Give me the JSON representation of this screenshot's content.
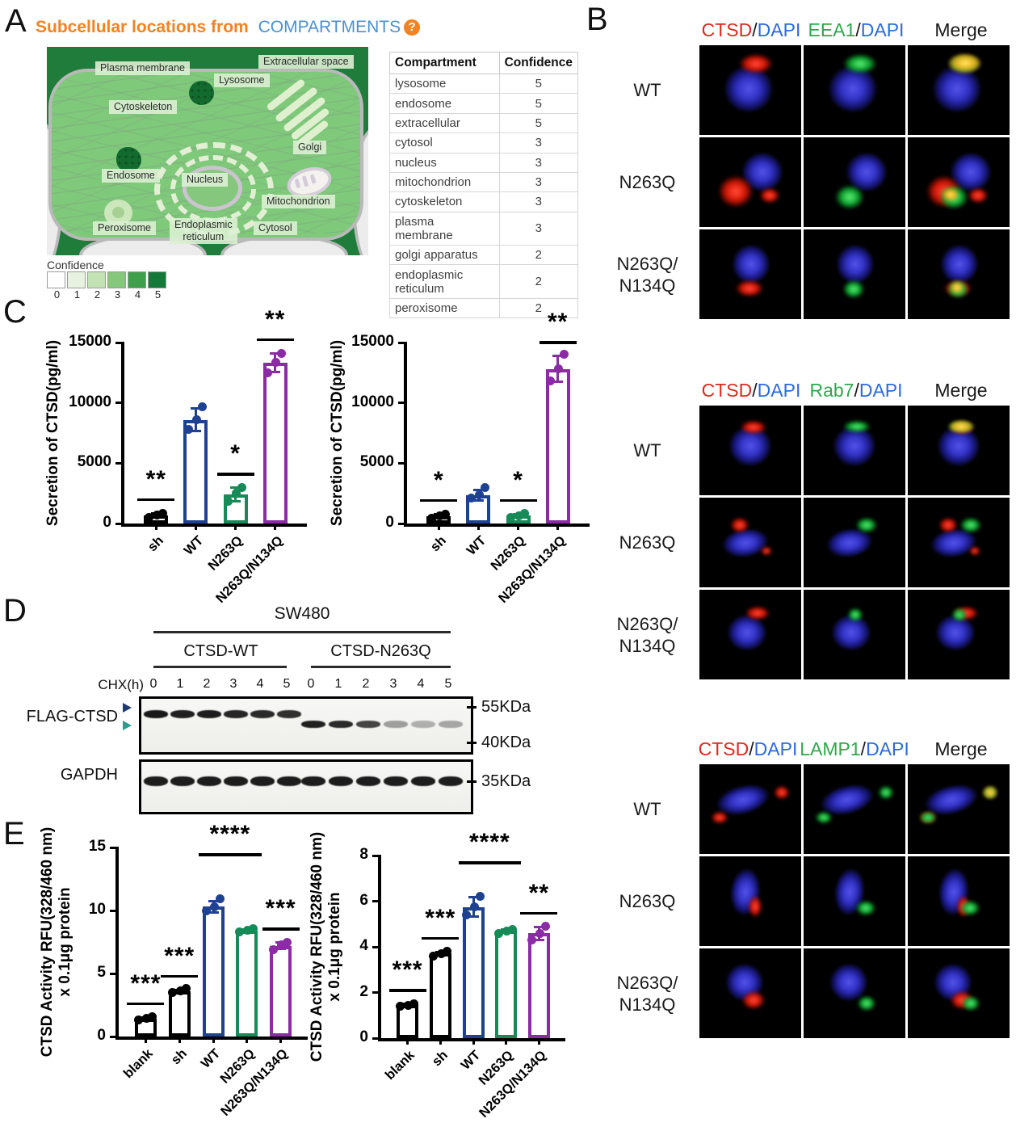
{
  "panel_letters": {
    "a": "A",
    "b": "B",
    "c": "C",
    "d": "D",
    "e": "E"
  },
  "panel_a": {
    "title_orange": "Subcellular locations from",
    "title_blue": "COMPARTMENTS",
    "help_icon": "?",
    "diagram_labels": {
      "plasma_membrane": "Plasma membrane",
      "extracellular": "Extracellular space",
      "lysosome": "Lysosome",
      "cytoskeleton": "Cytoskeleton",
      "golgi": "Golgi",
      "endosome": "Endosome",
      "nucleus": "Nucleus",
      "mitochondrion": "Mitochondrion",
      "peroxisome": "Peroxisome",
      "endoplasmic_reticulum": "Endoplasmic\nreticulum",
      "cytosol": "Cytosol"
    },
    "legend": {
      "label": "Confidence",
      "values": [
        "0",
        "1",
        "2",
        "3",
        "4",
        "5"
      ],
      "colors": [
        "#ffffff",
        "#e7f2e0",
        "#c3e2b4",
        "#85c87d",
        "#3fa04c",
        "#15793a"
      ]
    },
    "table": {
      "headers": [
        "Compartment",
        "Confidence"
      ],
      "rows": [
        [
          "lysosome",
          "5"
        ],
        [
          "endosome",
          "5"
        ],
        [
          "extracellular",
          "5"
        ],
        [
          "cytosol",
          "3"
        ],
        [
          "nucleus",
          "3"
        ],
        [
          "mitochondrion",
          "3"
        ],
        [
          "cytoskeleton",
          "3"
        ],
        [
          "plasma membrane",
          "3"
        ],
        [
          "golgi apparatus",
          "2"
        ],
        [
          "endoplasmic reticulum",
          "2"
        ],
        [
          "peroxisome",
          "2"
        ]
      ]
    }
  },
  "panel_b": {
    "blocks": [
      {
        "h1_red": "CTSD",
        "h1_slash": "/",
        "h1_blue": "DAPI",
        "h2_green": "EEA1",
        "h2_slash": "/",
        "h2_blue": "DAPI",
        "h3": "Merge",
        "rows": [
          "WT",
          "N263Q",
          "N263Q/\nN134Q"
        ]
      },
      {
        "h1_red": "CTSD",
        "h1_slash": "/",
        "h1_blue": "DAPI",
        "h2_green": "Rab7",
        "h2_slash": "/",
        "h2_blue": "DAPI",
        "h3": "Merge",
        "rows": [
          "WT",
          "N263Q",
          "N263Q/\nN134Q"
        ]
      },
      {
        "h1_red": "CTSD",
        "h1_slash": "/",
        "h1_blue": "DAPI",
        "h2_green": "LAMP1",
        "h2_slash": "/",
        "h2_blue": "DAPI",
        "h3": "Merge",
        "rows": [
          "WT",
          "N263Q",
          "N263Q/\nN134Q"
        ]
      }
    ]
  },
  "panel_d": {
    "cell_line": "SW480",
    "groups": [
      "CTSD-WT",
      "CTSD-N263Q"
    ],
    "chx_label": "CHX(h)",
    "lanes": [
      "0",
      "1",
      "2",
      "3",
      "4",
      "5"
    ],
    "blot_labels": [
      "FLAG-CTSD",
      "GAPDH"
    ],
    "markers": [
      "55KDa",
      "40KDa",
      "35KDa"
    ]
  },
  "chart_data": [
    {
      "id": "c1",
      "panel": "C",
      "type": "bar",
      "title": "",
      "xlabel": "",
      "ylabel": "Secretion of CTSD(pg/ml)",
      "yticks": [
        0,
        5000,
        10000,
        15000
      ],
      "ylim": [
        0,
        15000
      ],
      "grid": false,
      "legend": "none",
      "categories": [
        "sh",
        "WT",
        "N263Q",
        "N263Q/N134Q"
      ],
      "values": [
        700,
        8600,
        2400,
        13350
      ],
      "errors": [
        200,
        950,
        600,
        800
      ],
      "points": [
        [
          500,
          680,
          820
        ],
        [
          7800,
          8600,
          9700
        ],
        [
          1850,
          2500,
          2950
        ],
        [
          12500,
          13350,
          14100
        ]
      ],
      "colors": [
        "#000000",
        "#1E4191",
        "#168A57",
        "#8C2BA6"
      ],
      "sig": [
        "**",
        "",
        "*",
        "**"
      ]
    },
    {
      "id": "c2",
      "panel": "C",
      "type": "bar",
      "title": "",
      "xlabel": "",
      "ylabel": "Secretion of CTSD(pg/ml)",
      "yticks": [
        0,
        5000,
        10000,
        15000
      ],
      "ylim": [
        0,
        15000
      ],
      "grid": false,
      "legend": "none",
      "categories": [
        "sh",
        "WT",
        "N263Q",
        "N263Q/N134Q"
      ],
      "values": [
        620,
        2350,
        650,
        12800
      ],
      "errors": [
        200,
        450,
        180,
        1100
      ],
      "points": [
        [
          420,
          620,
          800
        ],
        [
          2100,
          2350,
          3000
        ],
        [
          480,
          650,
          820
        ],
        [
          11800,
          12800,
          14050
        ]
      ],
      "colors": [
        "#000000",
        "#1E4191",
        "#168A57",
        "#8C2BA6"
      ],
      "sig": [
        "*",
        "",
        "*",
        "**"
      ]
    },
    {
      "id": "e1",
      "panel": "E",
      "type": "bar",
      "title": "",
      "xlabel": "",
      "ylabel": "CTSD Activity RFU(328/460 nm)\nx 0.1μg protein",
      "yticks": [
        0,
        5,
        10,
        15
      ],
      "ylim": [
        0,
        15
      ],
      "grid": false,
      "legend": "none",
      "categories": [
        "blank",
        "sh",
        "WT",
        "N263Q",
        "N263Q/N134Q"
      ],
      "values": [
        1.4,
        3.6,
        10.3,
        8.4,
        7.2
      ],
      "errors": [
        0.15,
        0.15,
        0.5,
        0.1,
        0.3
      ],
      "points": [
        [
          1.3,
          1.45,
          1.55
        ],
        [
          3.5,
          3.65,
          3.8
        ],
        [
          10.0,
          10.3,
          10.9
        ],
        [
          8.3,
          8.45,
          8.55
        ],
        [
          6.9,
          7.25,
          7.5
        ]
      ],
      "colors": [
        "#000000",
        "#000000",
        "#1E4191",
        "#168A57",
        "#8C2BA6"
      ],
      "sig": [
        "***",
        "***",
        "",
        "",
        "***"
      ],
      "bracket": {
        "from": 2,
        "to": 3,
        "label": "****",
        "at": 14.55
      }
    },
    {
      "id": "e2",
      "panel": "E",
      "type": "bar",
      "title": "",
      "xlabel": "",
      "ylabel": "CTSD Activity RFU(328/460 nm)\nx 0.1μg protein",
      "yticks": [
        0,
        2,
        4,
        6,
        8
      ],
      "ylim": [
        0,
        8
      ],
      "grid": false,
      "legend": "none",
      "categories": [
        "blank",
        "sh",
        "WT",
        "N263Q",
        "N263Q/N134Q"
      ],
      "values": [
        1.45,
        3.7,
        5.75,
        4.7,
        4.6
      ],
      "errors": [
        0.06,
        0.1,
        0.45,
        0.08,
        0.3
      ],
      "points": [
        [
          1.4,
          1.45,
          1.5
        ],
        [
          3.6,
          3.7,
          3.8
        ],
        [
          5.4,
          5.75,
          6.2
        ],
        [
          4.6,
          4.7,
          4.75
        ],
        [
          4.3,
          4.6,
          4.9
        ]
      ],
      "colors": [
        "#000000",
        "#000000",
        "#1E4191",
        "#168A57",
        "#8C2BA6"
      ],
      "sig": [
        "***",
        "***",
        "",
        "",
        "**"
      ],
      "bracket": {
        "from": 2,
        "to": 3,
        "label": "****",
        "at": 7.75
      }
    }
  ]
}
